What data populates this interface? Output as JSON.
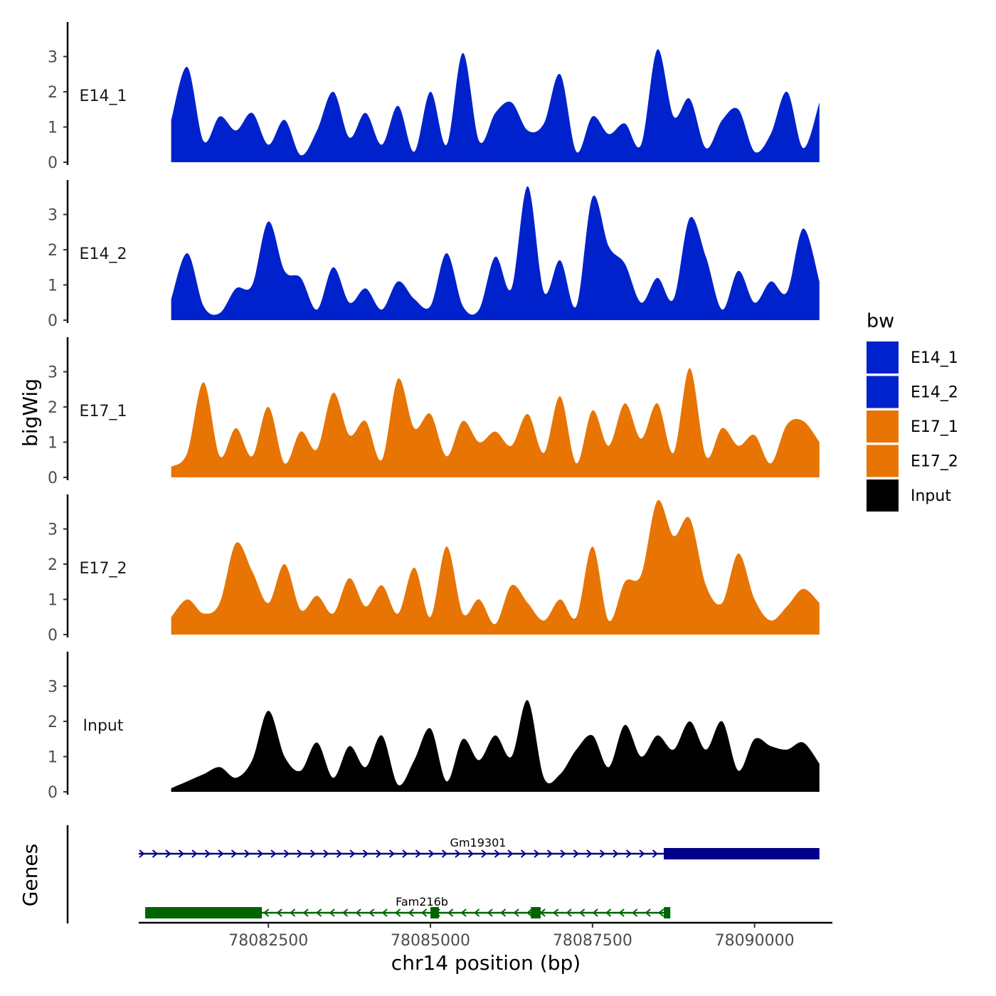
{
  "chart_data": {
    "type": "area",
    "chromosome": "chr14",
    "ylabel": "bigWig",
    "xlabel": "chr14 position (bp)",
    "xlim": [
      78080500,
      78091200
    ],
    "ylim": [
      0,
      4
    ],
    "y_ticks": [
      0,
      1,
      2,
      3
    ],
    "x_ticks": [
      78082500,
      78085000,
      78087500,
      78090000
    ],
    "legend": {
      "title": "bw",
      "position": "right",
      "entries": [
        {
          "label": "E14_1",
          "color": "#0022CC"
        },
        {
          "label": "E14_2",
          "color": "#0022CC"
        },
        {
          "label": "E17_1",
          "color": "#E87503"
        },
        {
          "label": "E17_2",
          "color": "#E87503"
        },
        {
          "label": "Input",
          "color": "#000000"
        }
      ]
    },
    "x": [
      78081000,
      78081250,
      78081500,
      78081750,
      78082000,
      78082250,
      78082500,
      78082750,
      78083000,
      78083250,
      78083500,
      78083750,
      78084000,
      78084250,
      78084500,
      78084750,
      78085000,
      78085250,
      78085500,
      78085750,
      78086000,
      78086250,
      78086500,
      78086750,
      78087000,
      78087250,
      78087500,
      78087750,
      78088000,
      78088250,
      78088500,
      78088750,
      78089000,
      78089250,
      78089500,
      78089750,
      78090000,
      78090250,
      78090500,
      78090750,
      78091000
    ],
    "series": [
      {
        "name": "E14_1",
        "color": "#0022CC",
        "values": [
          1.2,
          2.7,
          0.6,
          1.3,
          0.9,
          1.4,
          0.5,
          1.2,
          0.2,
          0.9,
          2.0,
          0.7,
          1.4,
          0.5,
          1.6,
          0.3,
          2.0,
          0.5,
          3.1,
          0.6,
          1.4,
          1.7,
          0.9,
          1.1,
          2.5,
          0.3,
          1.3,
          0.8,
          1.1,
          0.5,
          3.2,
          1.3,
          1.8,
          0.4,
          1.2,
          1.5,
          0.3,
          0.8,
          2.0,
          0.4,
          1.7
        ]
      },
      {
        "name": "E14_2",
        "color": "#0022CC",
        "values": [
          0.6,
          1.9,
          0.4,
          0.2,
          0.9,
          1.0,
          2.8,
          1.4,
          1.2,
          0.3,
          1.5,
          0.5,
          0.9,
          0.3,
          1.1,
          0.6,
          0.4,
          1.9,
          0.4,
          0.3,
          1.8,
          0.9,
          3.8,
          0.8,
          1.7,
          0.4,
          3.5,
          2.1,
          1.6,
          0.5,
          1.2,
          0.6,
          2.9,
          1.8,
          0.3,
          1.4,
          0.5,
          1.1,
          0.8,
          2.6,
          1.1
        ]
      },
      {
        "name": "E17_1",
        "color": "#E87503",
        "values": [
          0.3,
          0.7,
          2.7,
          0.6,
          1.4,
          0.6,
          2.0,
          0.4,
          1.3,
          0.8,
          2.4,
          1.2,
          1.6,
          0.5,
          2.8,
          1.4,
          1.8,
          0.6,
          1.6,
          1.0,
          1.3,
          0.9,
          1.8,
          0.7,
          2.3,
          0.4,
          1.9,
          0.9,
          2.1,
          1.1,
          2.1,
          0.7,
          3.1,
          0.6,
          1.4,
          0.9,
          1.2,
          0.4,
          1.5,
          1.6,
          1.0
        ]
      },
      {
        "name": "E17_2",
        "color": "#E87503",
        "values": [
          0.5,
          1.0,
          0.6,
          0.9,
          2.6,
          1.8,
          0.9,
          2.0,
          0.7,
          1.1,
          0.6,
          1.6,
          0.8,
          1.4,
          0.6,
          1.9,
          0.5,
          2.5,
          0.6,
          1.0,
          0.3,
          1.4,
          0.9,
          0.4,
          1.0,
          0.5,
          2.5,
          0.4,
          1.5,
          1.7,
          3.8,
          2.8,
          3.3,
          1.4,
          0.9,
          2.3,
          1.0,
          0.4,
          0.8,
          1.3,
          0.9
        ]
      },
      {
        "name": "Input",
        "color": "#000000",
        "values": [
          0.1,
          0.3,
          0.5,
          0.7,
          0.4,
          0.9,
          2.3,
          1.0,
          0.6,
          1.4,
          0.4,
          1.3,
          0.7,
          1.6,
          0.2,
          0.9,
          1.8,
          0.3,
          1.5,
          0.9,
          1.6,
          1.0,
          2.6,
          0.4,
          0.5,
          1.2,
          1.6,
          0.7,
          1.9,
          1.0,
          1.6,
          1.2,
          2.0,
          1.2,
          2.0,
          0.6,
          1.5,
          1.3,
          1.2,
          1.4,
          0.8
        ]
      }
    ],
    "genes_track": {
      "label": "Genes",
      "genes": [
        {
          "name": "Gm19301",
          "strand": "+",
          "color": "#00008B",
          "start": 78080500,
          "end": 78091000,
          "exons": [
            [
              78088600,
              78091000
            ]
          ]
        },
        {
          "name": "Fam216b",
          "strand": "-",
          "color": "#006400",
          "start": 78080600,
          "end": 78088700,
          "exons": [
            [
              78080600,
              78082400
            ],
            [
              78085000,
              78085130
            ],
            [
              78086550,
              78086700
            ],
            [
              78088600,
              78088700
            ]
          ]
        }
      ]
    }
  }
}
